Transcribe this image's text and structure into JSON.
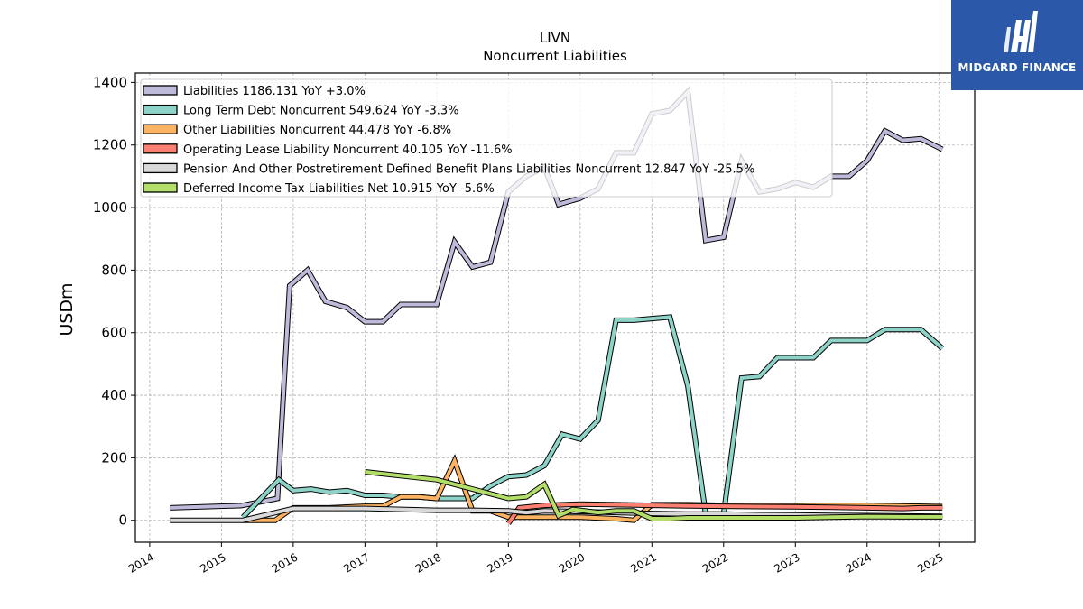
{
  "chart_data": {
    "type": "line",
    "title": "LIVN",
    "subtitle": "Noncurrent  Liabilities",
    "ylabel": "USDm",
    "xlabel": "",
    "xlim": [
      2013.8,
      2025.5
    ],
    "ylim": [
      -70,
      1430
    ],
    "x_ticks": [
      2014,
      2015,
      2016,
      2017,
      2018,
      2019,
      2020,
      2021,
      2022,
      2023,
      2024,
      2025
    ],
    "y_ticks": [
      0,
      200,
      400,
      600,
      800,
      1000,
      1200,
      1400
    ],
    "grid": true,
    "legend_position": "top-left",
    "series": [
      {
        "name": "Liabilities",
        "legend": "Liabilities  1186.131 YoY +3.0%",
        "color": "#bebada",
        "x": [
          2014.28,
          2015.28,
          2015.78,
          2015.95,
          2016.2,
          2016.45,
          2016.75,
          2017.0,
          2017.25,
          2017.5,
          2017.75,
          2018.0,
          2018.25,
          2018.5,
          2018.75,
          2019.0,
          2019.25,
          2019.5,
          2019.7,
          2020.0,
          2020.25,
          2020.5,
          2020.75,
          2021.0,
          2021.25,
          2021.5,
          2021.75,
          2022.0,
          2022.25,
          2022.5,
          2022.75,
          2023.0,
          2023.25,
          2023.5,
          2023.75,
          2024.0,
          2024.25,
          2024.5,
          2024.75,
          2025.05
        ],
        "y": [
          40,
          47,
          70,
          750,
          800,
          700,
          680,
          635,
          635,
          690,
          690,
          690,
          890,
          810,
          825,
          1050,
          1100,
          1130,
          1010,
          1030,
          1060,
          1175,
          1175,
          1300,
          1310,
          1370,
          895,
          905,
          1150,
          1050,
          1060,
          1080,
          1065,
          1100,
          1100,
          1150,
          1245,
          1215,
          1220,
          1186
        ]
      },
      {
        "name": "Long Term Debt Noncurrent",
        "legend": "Long Term Debt Noncurrent  549.624 YoY -3.3%",
        "color": "#8dd3c7",
        "x": [
          2015.3,
          2015.55,
          2015.8,
          2016.0,
          2016.25,
          2016.5,
          2016.75,
          2017.0,
          2017.25,
          2017.5,
          2017.75,
          2018.0,
          2018.25,
          2018.5,
          2018.75,
          2019.0,
          2019.25,
          2019.5,
          2019.75,
          2020.0,
          2020.25,
          2020.5,
          2020.75,
          2021.0,
          2021.25,
          2021.5,
          2021.75,
          2022.0,
          2022.25,
          2022.5,
          2022.75,
          2023.0,
          2023.25,
          2023.5,
          2023.75,
          2024.0,
          2024.25,
          2024.5,
          2024.75,
          2025.05
        ],
        "y": [
          10,
          70,
          130,
          95,
          100,
          90,
          95,
          80,
          80,
          75,
          75,
          70,
          70,
          70,
          110,
          140,
          145,
          175,
          275,
          260,
          320,
          640,
          640,
          645,
          650,
          430,
          20,
          20,
          455,
          460,
          520,
          520,
          520,
          575,
          575,
          575,
          610,
          610,
          610,
          550
        ]
      },
      {
        "name": "Other Liabilities Noncurrent",
        "legend": "Other Liabilities Noncurrent  44.478 YoY -6.8%",
        "color": "#fdb462",
        "x": [
          2015.3,
          2015.75,
          2016.0,
          2016.5,
          2017.0,
          2017.25,
          2017.5,
          2017.75,
          2018.0,
          2018.25,
          2018.5,
          2018.75,
          2019.0,
          2019.25,
          2019.5,
          2020.0,
          2020.5,
          2020.75,
          2021.0,
          2021.5,
          2022.0,
          2022.5,
          2023.0,
          2023.5,
          2024.0,
          2024.5,
          2025.05
        ],
        "y": [
          0,
          0,
          40,
          40,
          45,
          45,
          75,
          75,
          70,
          190,
          30,
          30,
          10,
          10,
          10,
          10,
          5,
          0,
          50,
          50,
          48,
          48,
          47,
          48,
          48,
          46,
          44
        ]
      },
      {
        "name": "Operating Lease Liability Noncurrent",
        "legend": "Operating Lease Liability Noncurrent  40.105 YoY -11.6%",
        "color": "#fb8072",
        "x": [
          2019.0,
          2019.15,
          2019.5,
          2020.0,
          2020.5,
          2021.0,
          2021.5,
          2022.0,
          2022.5,
          2023.0,
          2023.5,
          2024.0,
          2024.5,
          2024.75,
          2025.05
        ],
        "y": [
          -10,
          40,
          48,
          52,
          50,
          48,
          46,
          45,
          44,
          43,
          42,
          40,
          38,
          40,
          40
        ]
      },
      {
        "name": "Pension And Other Postretirement Defined Benefit Plans Liabilities Noncurrent",
        "legend": "Pension And Other Postretirement Defined Benefit Plans Liabilities Noncurrent  12.847 YoY -25.5%",
        "color": "#d9d9d9",
        "x": [
          2014.28,
          2015.3,
          2016.0,
          2016.5,
          2017.0,
          2017.5,
          2018.0,
          2018.5,
          2019.0,
          2019.25,
          2019.5,
          2020.0,
          2020.5,
          2021.0,
          2021.5,
          2022.0,
          2022.5,
          2023.0,
          2023.5,
          2024.0,
          2024.5,
          2025.05
        ],
        "y": [
          0,
          0,
          38,
          38,
          38,
          35,
          32,
          32,
          30,
          25,
          30,
          28,
          25,
          22,
          20,
          20,
          18,
          17,
          16,
          15,
          14,
          13
        ]
      },
      {
        "name": "Deferred Income Tax Liabilities Net",
        "legend": "Deferred Income Tax Liabilities Net  10.915 YoY -5.6%",
        "color": "#b3de69",
        "x": [
          2017.0,
          2018.0,
          2018.5,
          2019.0,
          2019.25,
          2019.5,
          2019.7,
          2019.9,
          2020.25,
          2020.5,
          2020.75,
          2021.0,
          2021.25,
          2021.5,
          2022.0,
          2022.5,
          2023.0,
          2023.5,
          2024.0,
          2024.5,
          2025.05
        ],
        "y": [
          155,
          130,
          100,
          70,
          75,
          115,
          15,
          35,
          25,
          30,
          30,
          5,
          5,
          8,
          8,
          8,
          8,
          10,
          12,
          11,
          11
        ]
      }
    ]
  },
  "logo": {
    "text": "MIDGARD FINANCE",
    "color": "#2b58a8"
  }
}
